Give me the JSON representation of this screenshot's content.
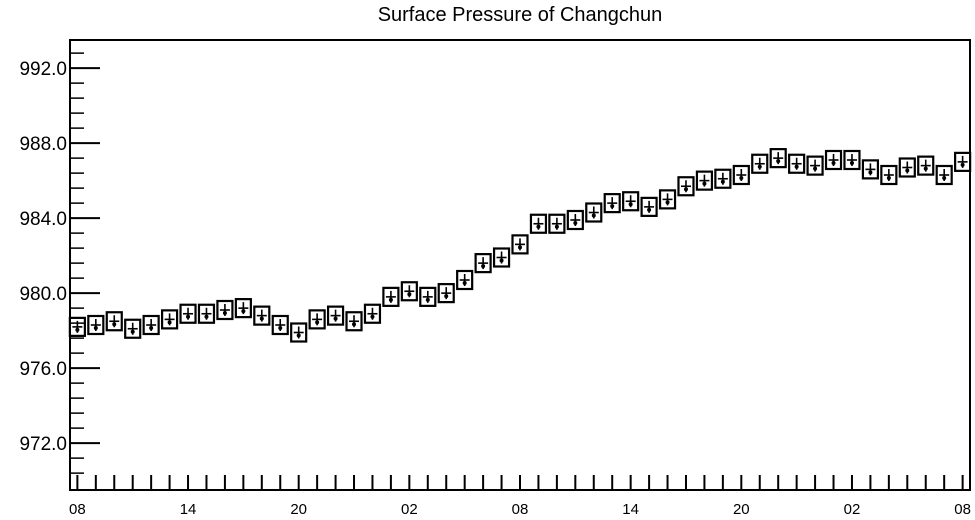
{
  "chart_data": {
    "type": "scatter",
    "title": "Surface Pressure of Changchun",
    "xlabel": "",
    "ylabel": "",
    "ylim": [
      969.5,
      993.5
    ],
    "xlim": [
      -0.4,
      48.4
    ],
    "y_ticks": [
      "992.0",
      "988.0",
      "984.0",
      "980.0",
      "976.0",
      "972.0"
    ],
    "y_tick_values": [
      992,
      988,
      984,
      980,
      976,
      972
    ],
    "x_ticks": [
      "08",
      "14",
      "20",
      "02",
      "08",
      "14",
      "20",
      "02",
      "08"
    ],
    "x_tick_steps": [
      0,
      6,
      12,
      18,
      24,
      30,
      36,
      42,
      48
    ],
    "x_step_hours": 1,
    "grid": false,
    "legend": "none",
    "marker": "boxed-plus",
    "series": [
      {
        "values": [
          978.2,
          978.3,
          978.5,
          978.1,
          978.3,
          978.6,
          978.9,
          978.9,
          979.1,
          979.2,
          978.8,
          978.3,
          977.9,
          978.6,
          978.8,
          978.5,
          978.9,
          979.8,
          980.1,
          979.8,
          980.0,
          980.7,
          981.6,
          981.9,
          982.6,
          983.7,
          983.7,
          983.9,
          984.3,
          984.8,
          984.9,
          984.6,
          985.0,
          985.7,
          986.0,
          986.1,
          986.3,
          986.9,
          987.2,
          986.9,
          986.8,
          987.1,
          987.1,
          986.6,
          986.3,
          986.7,
          986.8,
          986.3,
          987.0
        ]
      }
    ]
  }
}
